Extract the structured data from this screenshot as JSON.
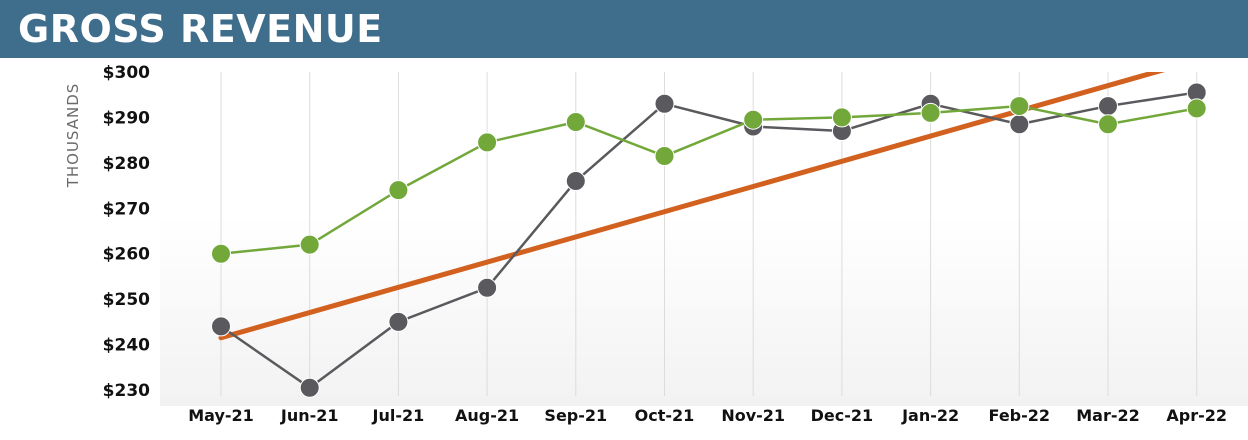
{
  "header": {
    "title": "GROSS REVENUE",
    "background": "#3f6d8c"
  },
  "chart_data": {
    "type": "line",
    "title": "GROSS REVENUE",
    "xlabel": "",
    "ylabel": "THOUSANDS",
    "categories": [
      "May-21",
      "Jun-21",
      "Jul-21",
      "Aug-21",
      "Sep-21",
      "Oct-21",
      "Nov-21",
      "Dec-21",
      "Jan-22",
      "Feb-22",
      "Mar-22",
      "Apr-22"
    ],
    "ylim": [
      230,
      300
    ],
    "yticks": [
      230,
      240,
      250,
      260,
      270,
      280,
      290,
      300
    ],
    "ytick_labels": [
      "$230",
      "$240",
      "$250",
      "$260",
      "$270",
      "$280",
      "$290",
      "$300"
    ],
    "grid": "vertical",
    "legend": "none",
    "series": [
      {
        "key": "green",
        "color": "#72a83a",
        "marker": "circle",
        "values": [
          260,
          262,
          274,
          284.5,
          289,
          281.5,
          289.5,
          290,
          291,
          292.5,
          288.5,
          292
        ]
      },
      {
        "key": "gray",
        "color": "#5a5a5e",
        "marker": "circle",
        "values": [
          244,
          230.5,
          245,
          252.5,
          276,
          293,
          288,
          287,
          293,
          288.5,
          292.5,
          295.5
        ]
      },
      {
        "key": "trend",
        "color": "#d2611f",
        "marker": "none",
        "type": "trendline",
        "x_start": "May-21",
        "y_start": 241.5,
        "slope_per_month": 5.55
      }
    ]
  }
}
